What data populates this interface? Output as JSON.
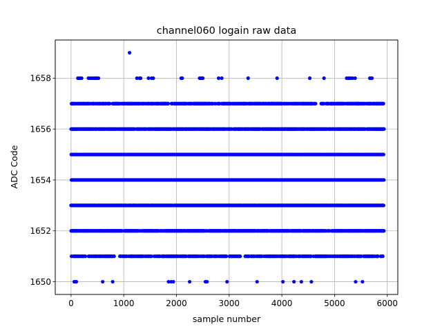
{
  "chart_data": {
    "type": "scatter",
    "title": "channel060 logain raw data",
    "xlabel": "sample number",
    "ylabel": "ADC Code",
    "xlim": [
      -300,
      6200
    ],
    "ylim": [
      1649.5,
      1659.5
    ],
    "xticks": [
      0,
      1000,
      2000,
      3000,
      4000,
      5000,
      6000
    ],
    "yticks": [
      1650,
      1652,
      1654,
      1656,
      1658
    ],
    "grid": true,
    "marker_color": "#0000ff",
    "n_samples": 5940,
    "levels": [
      {
        "y": 1659,
        "x": [
          1110
        ]
      },
      {
        "y": 1658,
        "x": [
          130,
          150,
          160,
          180,
          200,
          330,
          360,
          380,
          410,
          430,
          450,
          470,
          480,
          500,
          520,
          1250,
          1300,
          1320,
          1470,
          1530,
          1560,
          2090,
          2110,
          2440,
          2460,
          2480,
          2500,
          2800,
          2860,
          3360,
          3910,
          4530,
          4800,
          5230,
          5260,
          5280,
          5300,
          5340,
          5390,
          5670,
          5690,
          5710
        ]
      },
      {
        "y": 1657,
        "d": 0.68,
        "seed": 7
      },
      {
        "y": 1656,
        "d": 0.9,
        "seed": 11
      },
      {
        "y": 1655,
        "d": 0.98,
        "seed": 13
      },
      {
        "y": 1654,
        "d": 1.0,
        "seed": 17
      },
      {
        "y": 1653,
        "d": 0.96,
        "seed": 19
      },
      {
        "y": 1652,
        "d": 0.85,
        "seed": 23
      },
      {
        "y": 1651,
        "d": 0.6,
        "seed": 29
      },
      {
        "y": 1650,
        "x": [
          60,
          80,
          100,
          600,
          790,
          1850,
          1900,
          1940,
          2250,
          2550,
          2580,
          2960,
          3530,
          4020,
          4230,
          4370,
          4560,
          5400,
          5530
        ]
      }
    ]
  }
}
